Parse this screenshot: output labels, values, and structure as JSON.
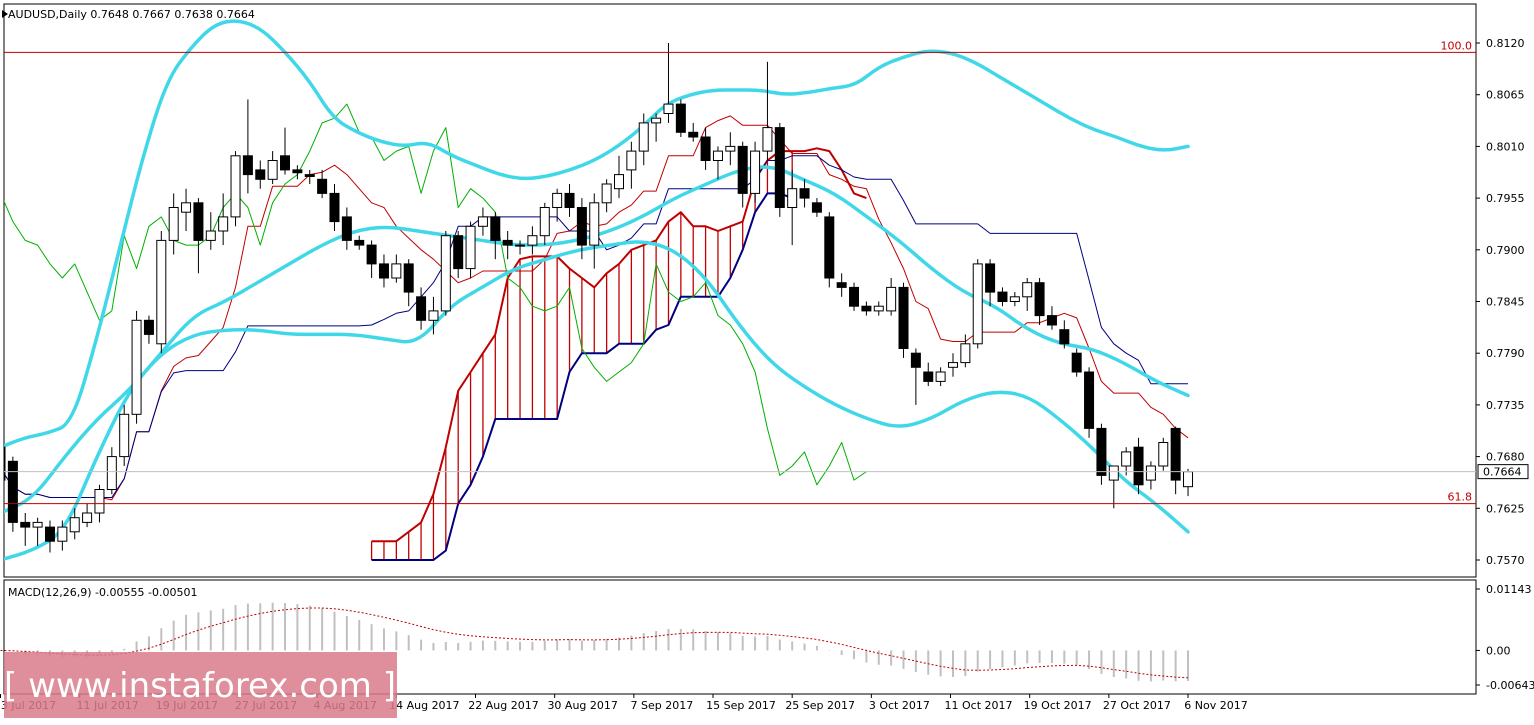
{
  "chart_data": {
    "type": "candlestick",
    "symbol_header": "AUDUSD,Daily  0.7648 0.7667 0.7638 0.7664",
    "current_price": "0.7664",
    "price_scale": {
      "ylim": [
        0.757,
        0.812
      ],
      "tick_labels": [
        "0.8120",
        "0.8065",
        "0.8010",
        "0.7955",
        "0.7900",
        "0.7845",
        "0.7790",
        "0.7735",
        "0.7680",
        "0.7625",
        "0.7570"
      ]
    },
    "x_tick_labels": [
      "3 Jul 2017",
      "11 Jul 2017",
      "19 Jul 2017",
      "27 Jul 2017",
      "4 Aug 2017",
      "14 Aug 2017",
      "22 Aug 2017",
      "30 Aug 2017",
      "7 Sep 2017",
      "15 Sep 2017",
      "25 Sep 2017",
      "3 Oct 2017",
      "11 Oct 2017",
      "19 Oct 2017",
      "27 Oct 2017",
      "6 Nov 2017"
    ],
    "fibonacci_levels": [
      {
        "label": "100.0",
        "value": 0.811
      },
      {
        "label": "61.8",
        "value": 0.763
      }
    ],
    "candles": [
      [
        0.769,
        0.7695,
        0.764,
        0.7655
      ],
      [
        0.7675,
        0.768,
        0.76,
        0.761
      ],
      [
        0.761,
        0.762,
        0.7585,
        0.7605
      ],
      [
        0.7605,
        0.7615,
        0.7585,
        0.761
      ],
      [
        0.7605,
        0.7612,
        0.7578,
        0.759
      ],
      [
        0.759,
        0.7612,
        0.758,
        0.7605
      ],
      [
        0.76,
        0.7625,
        0.7592,
        0.7615
      ],
      [
        0.761,
        0.763,
        0.7605,
        0.762
      ],
      [
        0.762,
        0.765,
        0.761,
        0.7645
      ],
      [
        0.7645,
        0.769,
        0.764,
        0.768
      ],
      [
        0.768,
        0.7735,
        0.767,
        0.7725
      ],
      [
        0.7725,
        0.7835,
        0.7715,
        0.7825
      ],
      [
        0.7825,
        0.783,
        0.78,
        0.781
      ],
      [
        0.78,
        0.792,
        0.779,
        0.791
      ],
      [
        0.791,
        0.796,
        0.7895,
        0.7945
      ],
      [
        0.794,
        0.7965,
        0.792,
        0.795
      ],
      [
        0.795,
        0.7955,
        0.7875,
        0.791
      ],
      [
        0.791,
        0.794,
        0.79,
        0.792
      ],
      [
        0.792,
        0.796,
        0.7905,
        0.7935
      ],
      [
        0.7935,
        0.8005,
        0.7925,
        0.8
      ],
      [
        0.8,
        0.806,
        0.796,
        0.798
      ],
      [
        0.7985,
        0.7995,
        0.7965,
        0.7975
      ],
      [
        0.7975,
        0.8005,
        0.797,
        0.7995
      ],
      [
        0.8,
        0.803,
        0.798,
        0.7985
      ],
      [
        0.7985,
        0.799,
        0.7975,
        0.7982
      ],
      [
        0.798,
        0.7985,
        0.797,
        0.7978
      ],
      [
        0.7975,
        0.7985,
        0.7955,
        0.796
      ],
      [
        0.796,
        0.797,
        0.792,
        0.793
      ],
      [
        0.7935,
        0.7945,
        0.79,
        0.791
      ],
      [
        0.791,
        0.7915,
        0.79,
        0.7905
      ],
      [
        0.7905,
        0.791,
        0.787,
        0.7885
      ],
      [
        0.7885,
        0.7895,
        0.786,
        0.787
      ],
      [
        0.787,
        0.7895,
        0.7865,
        0.7885
      ],
      [
        0.7885,
        0.789,
        0.784,
        0.7855
      ],
      [
        0.785,
        0.786,
        0.7815,
        0.7825
      ],
      [
        0.7825,
        0.785,
        0.781,
        0.7835
      ],
      [
        0.7835,
        0.792,
        0.783,
        0.7915
      ],
      [
        0.7915,
        0.792,
        0.787,
        0.788
      ],
      [
        0.788,
        0.793,
        0.787,
        0.7925
      ],
      [
        0.7925,
        0.7945,
        0.7915,
        0.7935
      ],
      [
        0.7935,
        0.794,
        0.789,
        0.791
      ],
      [
        0.791,
        0.792,
        0.789,
        0.7905
      ],
      [
        0.7905,
        0.791,
        0.7895,
        0.7905
      ],
      [
        0.7905,
        0.7925,
        0.7895,
        0.7915
      ],
      [
        0.7915,
        0.795,
        0.7905,
        0.7945
      ],
      [
        0.7945,
        0.7965,
        0.793,
        0.796
      ],
      [
        0.796,
        0.797,
        0.7935,
        0.7945
      ],
      [
        0.7945,
        0.7955,
        0.789,
        0.7905
      ],
      [
        0.7905,
        0.796,
        0.788,
        0.795
      ],
      [
        0.795,
        0.7975,
        0.794,
        0.797
      ],
      [
        0.7965,
        0.8,
        0.7955,
        0.798
      ],
      [
        0.7985,
        0.8015,
        0.7965,
        0.8005
      ],
      [
        0.8005,
        0.8045,
        0.799,
        0.8035
      ],
      [
        0.8035,
        0.8045,
        0.8015,
        0.804
      ],
      [
        0.8045,
        0.812,
        0.8035,
        0.8055
      ],
      [
        0.8055,
        0.806,
        0.802,
        0.8025
      ],
      [
        0.8025,
        0.8035,
        0.8015,
        0.802
      ],
      [
        0.802,
        0.803,
        0.7985,
        0.7995
      ],
      [
        0.7995,
        0.801,
        0.7975,
        0.8005
      ],
      [
        0.8005,
        0.8025,
        0.799,
        0.801
      ],
      [
        0.801,
        0.8015,
        0.7945,
        0.796
      ],
      [
        0.796,
        0.8015,
        0.795,
        0.8005
      ],
      [
        0.8005,
        0.81,
        0.7995,
        0.803
      ],
      [
        0.803,
        0.8035,
        0.7935,
        0.7945
      ],
      [
        0.7945,
        0.7985,
        0.7905,
        0.7965
      ],
      [
        0.7965,
        0.7975,
        0.7945,
        0.7955
      ],
      [
        0.795,
        0.7955,
        0.7935,
        0.794
      ],
      [
        0.7935,
        0.794,
        0.786,
        0.787
      ],
      [
        0.7865,
        0.7875,
        0.785,
        0.786
      ],
      [
        0.786,
        0.7865,
        0.7835,
        0.784
      ],
      [
        0.784,
        0.7845,
        0.783,
        0.7835
      ],
      [
        0.7835,
        0.7845,
        0.783,
        0.784
      ],
      [
        0.7835,
        0.787,
        0.783,
        0.786
      ],
      [
        0.786,
        0.7865,
        0.7785,
        0.7795
      ],
      [
        0.779,
        0.7795,
        0.7735,
        0.7775
      ],
      [
        0.777,
        0.778,
        0.7755,
        0.776
      ],
      [
        0.776,
        0.7775,
        0.7755,
        0.777
      ],
      [
        0.7775,
        0.779,
        0.7765,
        0.778
      ],
      [
        0.778,
        0.781,
        0.7775,
        0.78
      ],
      [
        0.78,
        0.789,
        0.7795,
        0.7885
      ],
      [
        0.7885,
        0.789,
        0.784,
        0.7855
      ],
      [
        0.7855,
        0.786,
        0.784,
        0.7845
      ],
      [
        0.7845,
        0.7855,
        0.784,
        0.785
      ],
      [
        0.785,
        0.787,
        0.7835,
        0.7865
      ],
      [
        0.7865,
        0.787,
        0.782,
        0.783
      ],
      [
        0.783,
        0.784,
        0.7815,
        0.782
      ],
      [
        0.7815,
        0.7825,
        0.7795,
        0.78
      ],
      [
        0.779,
        0.7795,
        0.7765,
        0.777
      ],
      [
        0.777,
        0.7775,
        0.77,
        0.771
      ],
      [
        0.771,
        0.7715,
        0.765,
        0.766
      ],
      [
        0.7655,
        0.7665,
        0.7625,
        0.767
      ],
      [
        0.767,
        0.769,
        0.766,
        0.7685
      ],
      [
        0.769,
        0.77,
        0.764,
        0.765
      ],
      [
        0.7655,
        0.7675,
        0.7645,
        0.767
      ],
      [
        0.767,
        0.77,
        0.7665,
        0.7695
      ],
      [
        0.771,
        0.7712,
        0.764,
        0.7655
      ],
      [
        0.7648,
        0.7667,
        0.7638,
        0.7664
      ]
    ],
    "bollinger_upper": [
      0.769,
      0.77,
      0.7705,
      0.7715,
      0.78,
      0.79,
      0.8,
      0.808,
      0.8115,
      0.814,
      0.8145,
      0.8135,
      0.811,
      0.808,
      0.804,
      0.8025,
      0.8015,
      0.801,
      0.8015,
      0.8,
      0.799,
      0.798,
      0.7975,
      0.7978,
      0.7985,
      0.7995,
      0.801,
      0.803,
      0.8055,
      0.8065,
      0.807,
      0.807,
      0.807,
      0.8065,
      0.8067,
      0.8072,
      0.8075,
      0.8095,
      0.8105,
      0.8112,
      0.811,
      0.81,
      0.8085,
      0.807,
      0.8055,
      0.804,
      0.8028,
      0.802,
      0.801,
      0.8005,
      0.801
    ],
    "bollinger_middle": [
      0.762,
      0.7635,
      0.768,
      0.772,
      0.775,
      0.779,
      0.783,
      0.7845,
      0.7865,
      0.7885,
      0.7905,
      0.792,
      0.7925,
      0.792,
      0.7915,
      0.791,
      0.7905,
      0.7905,
      0.791,
      0.792,
      0.7935,
      0.7955,
      0.797,
      0.7985,
      0.799,
      0.7975,
      0.796,
      0.7935,
      0.791,
      0.788,
      0.7855,
      0.784,
      0.7815,
      0.78,
      0.7795,
      0.778,
      0.776,
      0.7745
    ],
    "bollinger_lower": [
      0.757,
      0.758,
      0.76,
      0.768,
      0.775,
      0.779,
      0.781,
      0.7815,
      0.7815,
      0.781,
      0.781,
      0.781,
      0.7805,
      0.78,
      0.784,
      0.786,
      0.788,
      0.789,
      0.79,
      0.7905,
      0.791,
      0.79,
      0.787,
      0.782,
      0.778,
      0.7755,
      0.7735,
      0.772,
      0.771,
      0.772,
      0.774,
      0.775,
      0.7745,
      0.772,
      0.769,
      0.7655,
      0.763,
      0.76
    ],
    "ichimoku_span_a": [
      0.759,
      0.759,
      0.759,
      0.76,
      0.761,
      0.764,
      0.769,
      0.775,
      0.777,
      0.779,
      0.781,
      0.787,
      0.789,
      0.7893,
      0.7893,
      0.7893,
      0.788,
      0.787,
      0.786,
      0.7875,
      0.7885,
      0.79,
      0.7905,
      0.791,
      0.793,
      0.794,
      0.7925,
      0.7925,
      0.792,
      0.7925,
      0.793,
      0.7975,
      0.7995,
      0.8005,
      0.8005,
      0.8005,
      0.8008,
      0.8005,
      0.7985,
      0.796,
      0.7955
    ],
    "ichimoku_span_b": [
      0.757,
      0.757,
      0.757,
      0.757,
      0.757,
      0.757,
      0.758,
      0.763,
      0.765,
      0.768,
      0.772,
      0.772,
      0.772,
      0.772,
      0.772,
      0.772,
      0.777,
      0.779,
      0.779,
      0.779,
      0.78,
      0.78,
      0.78,
      0.7815,
      0.782,
      0.785,
      0.785,
      0.785,
      0.785,
      0.787,
      0.79,
      0.794,
      0.796,
      0.796,
      0.7955
    ],
    "macd": {
      "label": "MACD(12,26,9) -0.00555 -0.00501",
      "scale_labels": [
        "0.01143",
        "0.00",
        "-0.00643"
      ],
      "ylim": [
        -0.00643,
        0.01143
      ]
    },
    "watermark": "[ www.instaforex.com ]"
  }
}
